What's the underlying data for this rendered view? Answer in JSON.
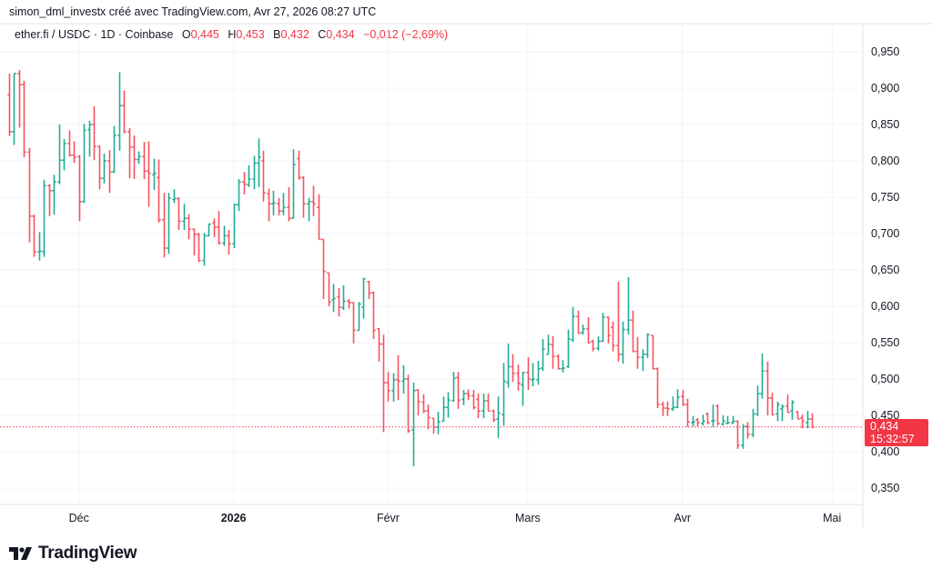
{
  "header": {
    "credit": "simon_dml_investx créé avec TradingView.com, Avr 27, 2026 08:27 UTC",
    "symbol": "ether.fi / USDC · 1D · Coinbase",
    "open_label": "O",
    "open": "0,445",
    "high_label": "H",
    "high": "0,453",
    "low_label": "B",
    "low": "0,432",
    "close_label": "C",
    "close": "0,434",
    "change": "−0,012 (−2,69%)"
  },
  "last_price": {
    "value": "0,434",
    "countdown": "15:32:57"
  },
  "logo": {
    "text": "TradingView"
  },
  "colors": {
    "up": "#22ab94",
    "down": "#f7525f",
    "last": "#f23645",
    "grid": "#f0f3fa"
  },
  "chart_data": {
    "type": "ohlc",
    "title": "",
    "xlabel": "",
    "ylabel": "",
    "ylim": [
      0.33,
      0.97
    ],
    "grid": true,
    "y_ticks": [
      "0,950",
      "0,900",
      "0,850",
      "0,800",
      "0,750",
      "0,700",
      "0,650",
      "0,600",
      "0,550",
      "0,500",
      "0,450",
      "0,400",
      "0,350"
    ],
    "y_tick_values": [
      0.95,
      0.9,
      0.85,
      0.8,
      0.75,
      0.7,
      0.65,
      0.6,
      0.55,
      0.5,
      0.45,
      0.4,
      0.35
    ],
    "x_ticks": [
      {
        "label": "Déc",
        "date": "2025-12-01",
        "bold": false
      },
      {
        "label": "2026",
        "date": "2026-01-01",
        "bold": true
      },
      {
        "label": "Févr",
        "date": "2026-02-01",
        "bold": false
      },
      {
        "label": "Mars",
        "date": "2026-03-01",
        "bold": false
      },
      {
        "label": "Avr",
        "date": "2026-04-01",
        "bold": false
      },
      {
        "label": "Mai",
        "date": "2026-05-01",
        "bold": false
      }
    ],
    "columns": [
      "date",
      "open",
      "high",
      "low",
      "close"
    ],
    "bars": [
      [
        "2025-11-17",
        0.891,
        0.92,
        0.834,
        0.84
      ],
      [
        "2025-11-18",
        0.84,
        0.92,
        0.822,
        0.92
      ],
      [
        "2025-11-19",
        0.92,
        0.925,
        0.846,
        0.905
      ],
      [
        "2025-11-20",
        0.905,
        0.91,
        0.805,
        0.812
      ],
      [
        "2025-11-21",
        0.812,
        0.818,
        0.688,
        0.724
      ],
      [
        "2025-11-22",
        0.724,
        0.726,
        0.668,
        0.675
      ],
      [
        "2025-11-23",
        0.675,
        0.702,
        0.663,
        0.676
      ],
      [
        "2025-11-24",
        0.675,
        0.774,
        0.668,
        0.766
      ],
      [
        "2025-11-25",
        0.766,
        0.768,
        0.724,
        0.759
      ],
      [
        "2025-11-26",
        0.759,
        0.781,
        0.726,
        0.771
      ],
      [
        "2025-11-27",
        0.771,
        0.85,
        0.768,
        0.801
      ],
      [
        "2025-11-28",
        0.801,
        0.83,
        0.787,
        0.824
      ],
      [
        "2025-11-29",
        0.824,
        0.842,
        0.806,
        0.808
      ],
      [
        "2025-11-30",
        0.808,
        0.827,
        0.797,
        0.805
      ],
      [
        "2025-12-01",
        0.806,
        0.808,
        0.717,
        0.744
      ],
      [
        "2025-12-02",
        0.744,
        0.851,
        0.742,
        0.842
      ],
      [
        "2025-12-03",
        0.843,
        0.855,
        0.806,
        0.85
      ],
      [
        "2025-12-04",
        0.85,
        0.875,
        0.801,
        0.82
      ],
      [
        "2025-12-05",
        0.82,
        0.821,
        0.761,
        0.776
      ],
      [
        "2025-12-06",
        0.776,
        0.81,
        0.769,
        0.8
      ],
      [
        "2025-12-07",
        0.8,
        0.815,
        0.756,
        0.785
      ],
      [
        "2025-12-08",
        0.785,
        0.848,
        0.783,
        0.835
      ],
      [
        "2025-12-09",
        0.835,
        0.922,
        0.814,
        0.876
      ],
      [
        "2025-12-10",
        0.876,
        0.897,
        0.838,
        0.84
      ],
      [
        "2025-12-11",
        0.84,
        0.845,
        0.776,
        0.819
      ],
      [
        "2025-12-12",
        0.819,
        0.835,
        0.775,
        0.802
      ],
      [
        "2025-12-13",
        0.802,
        0.813,
        0.796,
        0.806
      ],
      [
        "2025-12-14",
        0.806,
        0.826,
        0.775,
        0.786
      ],
      [
        "2025-12-15",
        0.786,
        0.827,
        0.737,
        0.783
      ],
      [
        "2025-12-16",
        0.781,
        0.803,
        0.76,
        0.783
      ],
      [
        "2025-12-17",
        0.777,
        0.802,
        0.715,
        0.719
      ],
      [
        "2025-12-18",
        0.719,
        0.756,
        0.667,
        0.68
      ],
      [
        "2025-12-19",
        0.68,
        0.756,
        0.672,
        0.749
      ],
      [
        "2025-12-20",
        0.747,
        0.761,
        0.742,
        0.748
      ],
      [
        "2025-12-21",
        0.748,
        0.75,
        0.705,
        0.717
      ],
      [
        "2025-12-22",
        0.717,
        0.741,
        0.705,
        0.721
      ],
      [
        "2025-12-23",
        0.721,
        0.727,
        0.692,
        0.706
      ],
      [
        "2025-12-24",
        0.706,
        0.707,
        0.67,
        0.699
      ],
      [
        "2025-12-25",
        0.699,
        0.701,
        0.661,
        0.663
      ],
      [
        "2025-12-26",
        0.663,
        0.701,
        0.656,
        0.697
      ],
      [
        "2025-12-27",
        0.697,
        0.714,
        0.696,
        0.713
      ],
      [
        "2025-12-28",
        0.715,
        0.721,
        0.695,
        0.709
      ],
      [
        "2025-12-29",
        0.709,
        0.731,
        0.685,
        0.687
      ],
      [
        "2025-12-30",
        0.687,
        0.711,
        0.683,
        0.697
      ],
      [
        "2025-12-31",
        0.697,
        0.705,
        0.671,
        0.686
      ],
      [
        "2026-01-01",
        0.686,
        0.741,
        0.68,
        0.74
      ],
      [
        "2026-01-02",
        0.74,
        0.775,
        0.731,
        0.771
      ],
      [
        "2026-01-03",
        0.771,
        0.785,
        0.754,
        0.768
      ],
      [
        "2026-01-04",
        0.767,
        0.794,
        0.764,
        0.775
      ],
      [
        "2026-01-05",
        0.775,
        0.807,
        0.761,
        0.797
      ],
      [
        "2026-01-06",
        0.797,
        0.831,
        0.764,
        0.805
      ],
      [
        "2026-01-07",
        0.8,
        0.814,
        0.744,
        0.756
      ],
      [
        "2026-01-08",
        0.755,
        0.762,
        0.717,
        0.741
      ],
      [
        "2026-01-09",
        0.741,
        0.759,
        0.725,
        0.742
      ],
      [
        "2026-01-10",
        0.741,
        0.749,
        0.725,
        0.731
      ],
      [
        "2026-01-11",
        0.731,
        0.756,
        0.725,
        0.736
      ],
      [
        "2026-01-12",
        0.736,
        0.764,
        0.717,
        0.721
      ],
      [
        "2026-01-13",
        0.721,
        0.816,
        0.721,
        0.795
      ],
      [
        "2026-01-14",
        0.803,
        0.814,
        0.774,
        0.777
      ],
      [
        "2026-01-15",
        0.777,
        0.779,
        0.722,
        0.741
      ],
      [
        "2026-01-16",
        0.741,
        0.749,
        0.717,
        0.744
      ],
      [
        "2026-01-17",
        0.744,
        0.766,
        0.724,
        0.741
      ],
      [
        "2026-01-18",
        0.736,
        0.754,
        0.692,
        0.692
      ],
      [
        "2026-01-19",
        0.692,
        0.692,
        0.61,
        0.648
      ],
      [
        "2026-01-20",
        0.646,
        0.646,
        0.6,
        0.606
      ],
      [
        "2026-01-21",
        0.609,
        0.631,
        0.592,
        0.611
      ],
      [
        "2026-01-22",
        0.613,
        0.625,
        0.586,
        0.599
      ],
      [
        "2026-01-23",
        0.598,
        0.629,
        0.595,
        0.607
      ],
      [
        "2026-01-24",
        0.607,
        0.61,
        0.597,
        0.605
      ],
      [
        "2026-01-25",
        0.605,
        0.606,
        0.549,
        0.567
      ],
      [
        "2026-01-26",
        0.567,
        0.606,
        0.567,
        0.603
      ],
      [
        "2026-01-27",
        0.599,
        0.639,
        0.583,
        0.638
      ],
      [
        "2026-01-28",
        0.634,
        0.635,
        0.61,
        0.618
      ],
      [
        "2026-01-29",
        0.619,
        0.62,
        0.555,
        0.567
      ],
      [
        "2026-01-30",
        0.569,
        0.57,
        0.524,
        0.548
      ],
      [
        "2026-01-31",
        0.548,
        0.561,
        0.427,
        0.495
      ],
      [
        "2026-02-01",
        0.495,
        0.51,
        0.469,
        0.484
      ],
      [
        "2026-02-02",
        0.484,
        0.508,
        0.469,
        0.499
      ],
      [
        "2026-02-03",
        0.499,
        0.533,
        0.471,
        0.497
      ],
      [
        "2026-02-04",
        0.497,
        0.519,
        0.48,
        0.5
      ],
      [
        "2026-02-05",
        0.5,
        0.506,
        0.426,
        0.429
      ],
      [
        "2026-02-06",
        0.43,
        0.495,
        0.38,
        0.484
      ],
      [
        "2026-02-07",
        0.485,
        0.486,
        0.45,
        0.469
      ],
      [
        "2026-02-08",
        0.468,
        0.479,
        0.453,
        0.456
      ],
      [
        "2026-02-09",
        0.456,
        0.465,
        0.431,
        0.447
      ],
      [
        "2026-02-10",
        0.446,
        0.446,
        0.425,
        0.434
      ],
      [
        "2026-02-11",
        0.434,
        0.455,
        0.424,
        0.441
      ],
      [
        "2026-02-12",
        0.442,
        0.476,
        0.442,
        0.461
      ],
      [
        "2026-02-13",
        0.461,
        0.482,
        0.447,
        0.471
      ],
      [
        "2026-02-14",
        0.47,
        0.51,
        0.469,
        0.501
      ],
      [
        "2026-02-15",
        0.502,
        0.51,
        0.459,
        0.471
      ],
      [
        "2026-02-16",
        0.472,
        0.485,
        0.464,
        0.48
      ],
      [
        "2026-02-17",
        0.48,
        0.486,
        0.471,
        0.477
      ],
      [
        "2026-02-18",
        0.477,
        0.485,
        0.458,
        0.461
      ],
      [
        "2026-02-19",
        0.472,
        0.48,
        0.446,
        0.456
      ],
      [
        "2026-02-20",
        0.456,
        0.48,
        0.446,
        0.47
      ],
      [
        "2026-02-21",
        0.47,
        0.48,
        0.456,
        0.456
      ],
      [
        "2026-02-22",
        0.456,
        0.458,
        0.441,
        0.444
      ],
      [
        "2026-02-23",
        0.445,
        0.476,
        0.419,
        0.453
      ],
      [
        "2026-02-24",
        0.451,
        0.522,
        0.436,
        0.497
      ],
      [
        "2026-02-25",
        0.495,
        0.549,
        0.488,
        0.517
      ],
      [
        "2026-02-26",
        0.517,
        0.534,
        0.496,
        0.508
      ],
      [
        "2026-02-27",
        0.508,
        0.52,
        0.484,
        0.494
      ],
      [
        "2026-02-28",
        0.492,
        0.51,
        0.463,
        0.509
      ],
      [
        "2026-03-01",
        0.509,
        0.53,
        0.485,
        0.5
      ],
      [
        "2026-03-02",
        0.499,
        0.522,
        0.49,
        0.5
      ],
      [
        "2026-03-03",
        0.499,
        0.525,
        0.492,
        0.514
      ],
      [
        "2026-03-04",
        0.515,
        0.555,
        0.511,
        0.541
      ],
      [
        "2026-03-05",
        0.534,
        0.561,
        0.534,
        0.548
      ],
      [
        "2026-03-06",
        0.547,
        0.559,
        0.514,
        0.531
      ],
      [
        "2026-03-07",
        0.531,
        0.534,
        0.513,
        0.514
      ],
      [
        "2026-03-08",
        0.514,
        0.526,
        0.509,
        0.515
      ],
      [
        "2026-03-09",
        0.517,
        0.568,
        0.515,
        0.555
      ],
      [
        "2026-03-10",
        0.554,
        0.599,
        0.551,
        0.586
      ],
      [
        "2026-03-11",
        0.586,
        0.594,
        0.562,
        0.563
      ],
      [
        "2026-03-12",
        0.564,
        0.575,
        0.561,
        0.569
      ],
      [
        "2026-03-13",
        0.569,
        0.585,
        0.549,
        0.55
      ],
      [
        "2026-03-14",
        0.552,
        0.554,
        0.538,
        0.542
      ],
      [
        "2026-03-15",
        0.542,
        0.559,
        0.539,
        0.552
      ],
      [
        "2026-03-16",
        0.552,
        0.591,
        0.551,
        0.585
      ],
      [
        "2026-03-17",
        0.585,
        0.586,
        0.549,
        0.56
      ],
      [
        "2026-03-18",
        0.571,
        0.579,
        0.538,
        0.546
      ],
      [
        "2026-03-19",
        0.546,
        0.634,
        0.524,
        0.534
      ],
      [
        "2026-03-20",
        0.534,
        0.579,
        0.521,
        0.568
      ],
      [
        "2026-03-21",
        0.568,
        0.64,
        0.561,
        0.581
      ],
      [
        "2026-03-22",
        0.581,
        0.594,
        0.537,
        0.538
      ],
      [
        "2026-03-23",
        0.538,
        0.558,
        0.514,
        0.53
      ],
      [
        "2026-03-24",
        0.53,
        0.541,
        0.511,
        0.534
      ],
      [
        "2026-03-25",
        0.534,
        0.563,
        0.529,
        0.561
      ],
      [
        "2026-03-26",
        0.56,
        0.56,
        0.513,
        0.514
      ],
      [
        "2026-03-27",
        0.514,
        0.516,
        0.46,
        0.465
      ],
      [
        "2026-03-28",
        0.465,
        0.469,
        0.449,
        0.46
      ],
      [
        "2026-03-29",
        0.46,
        0.469,
        0.449,
        0.459
      ],
      [
        "2026-03-30",
        0.459,
        0.476,
        0.456,
        0.461
      ],
      [
        "2026-03-31",
        0.461,
        0.486,
        0.46,
        0.475
      ],
      [
        "2026-04-01",
        0.476,
        0.485,
        0.463,
        0.465
      ],
      [
        "2026-04-02",
        0.465,
        0.473,
        0.434,
        0.441
      ],
      [
        "2026-04-03",
        0.44,
        0.449,
        0.435,
        0.441
      ],
      [
        "2026-04-04",
        0.444,
        0.446,
        0.435,
        0.44
      ],
      [
        "2026-04-05",
        0.439,
        0.451,
        0.436,
        0.442
      ],
      [
        "2026-04-06",
        0.452,
        0.454,
        0.438,
        0.44
      ],
      [
        "2026-04-07",
        0.442,
        0.465,
        0.434,
        0.443
      ],
      [
        "2026-04-08",
        0.463,
        0.465,
        0.436,
        0.439
      ],
      [
        "2026-04-09",
        0.438,
        0.45,
        0.436,
        0.442
      ],
      [
        "2026-04-10",
        0.439,
        0.449,
        0.438,
        0.44
      ],
      [
        "2026-04-11",
        0.44,
        0.449,
        0.438,
        0.442
      ],
      [
        "2026-04-12",
        0.442,
        0.443,
        0.404,
        0.409
      ],
      [
        "2026-04-13",
        0.409,
        0.438,
        0.404,
        0.435
      ],
      [
        "2026-04-14",
        0.435,
        0.441,
        0.418,
        0.424
      ],
      [
        "2026-04-15",
        0.424,
        0.459,
        0.42,
        0.452
      ],
      [
        "2026-04-16",
        0.452,
        0.491,
        0.449,
        0.48
      ],
      [
        "2026-04-17",
        0.48,
        0.535,
        0.473,
        0.511
      ],
      [
        "2026-04-18",
        0.511,
        0.524,
        0.45,
        0.474
      ],
      [
        "2026-04-19",
        0.474,
        0.481,
        0.45,
        0.451
      ],
      [
        "2026-04-20",
        0.452,
        0.469,
        0.442,
        0.465
      ],
      [
        "2026-04-21",
        0.459,
        0.465,
        0.442,
        0.462
      ],
      [
        "2026-04-22",
        0.463,
        0.479,
        0.454,
        0.454
      ],
      [
        "2026-04-23",
        0.456,
        0.471,
        0.444,
        0.468
      ],
      [
        "2026-04-24",
        0.455,
        0.456,
        0.445,
        0.445
      ],
      [
        "2026-04-25",
        0.446,
        0.451,
        0.432,
        0.442
      ],
      [
        "2026-04-26",
        0.44,
        0.456,
        0.432,
        0.445
      ],
      [
        "2026-04-27",
        0.445,
        0.453,
        0.432,
        0.434
      ]
    ]
  }
}
